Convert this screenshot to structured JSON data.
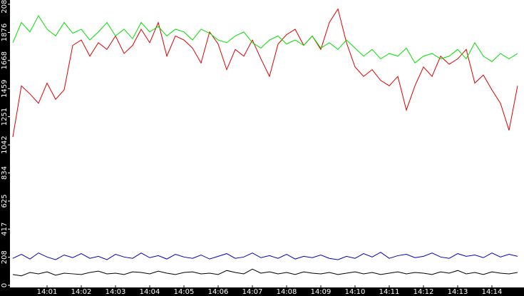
{
  "chart_data": {
    "type": "line",
    "categories": [
      null,
      null,
      null,
      null,
      "14:01",
      null,
      null,
      null,
      "14:02",
      null,
      null,
      null,
      "14:03",
      null,
      null,
      null,
      "14:04",
      null,
      null,
      null,
      "14:05",
      null,
      null,
      null,
      "14:06",
      null,
      null,
      null,
      "14:07",
      null,
      null,
      null,
      "14:08",
      null,
      null,
      null,
      "14:09",
      null,
      null,
      null,
      "14:10",
      null,
      null,
      null,
      "14:11",
      null,
      null,
      null,
      "14:12",
      null,
      null,
      null,
      "14:13",
      null,
      null,
      null,
      "14:14",
      null,
      null,
      null
    ],
    "series": [
      {
        "color": "#e00000",
        "values": [
          1100,
          1480,
          1420,
          1350,
          1500,
          1380,
          1450,
          1780,
          1820,
          1700,
          1800,
          1750,
          1850,
          1720,
          1780,
          1900,
          1800,
          1950,
          1700,
          1850,
          1820,
          1760,
          1650,
          1880,
          1790,
          1600,
          1750,
          1700,
          1820,
          1680,
          1550,
          1790,
          1860,
          1900,
          1780,
          1850,
          1750,
          1950,
          2050,
          1800,
          1620,
          1550,
          1600,
          1520,
          1480,
          1550,
          1300,
          1480,
          1620,
          1550,
          1700,
          1640,
          1680,
          1750,
          1500,
          1560,
          1450,
          1350,
          1150,
          1480
        ]
      },
      {
        "color": "#00e000",
        "values": [
          1800,
          1950,
          1880,
          2000,
          1900,
          1850,
          1950,
          1870,
          1900,
          1820,
          1880,
          1950,
          1850,
          1900,
          1830,
          1950,
          1880,
          1920,
          1850,
          1900,
          1880,
          1820,
          1900,
          1870,
          1820,
          1800,
          1850,
          1880,
          1800,
          1760,
          1820,
          1850,
          1790,
          1820,
          1780,
          1850,
          1760,
          1800,
          1750,
          1820,
          1760,
          1700,
          1750,
          1680,
          1720,
          1700,
          1760,
          1650,
          1700,
          1720,
          1680,
          1700,
          1750,
          1680,
          1800,
          1700,
          1660,
          1720,
          1680,
          1720
        ]
      },
      {
        "color": "#0000c0",
        "values": [
          200,
          230,
          195,
          240,
          210,
          190,
          225,
          205,
          235,
          200,
          215,
          190,
          230,
          210,
          200,
          240,
          205,
          220,
          195,
          230,
          210,
          200,
          225,
          195,
          215,
          235,
          200,
          210,
          240,
          205,
          220,
          200,
          230,
          195,
          215,
          205,
          225,
          200,
          190,
          215,
          200,
          235,
          210,
          245,
          200,
          220,
          230,
          205,
          215,
          240,
          210,
          200,
          235,
          215,
          225,
          205,
          240,
          210,
          230,
          215
        ]
      },
      {
        "color": "#000000",
        "values": [
          80,
          70,
          95,
          85,
          100,
          75,
          90,
          85,
          80,
          95,
          105,
          85,
          90,
          80,
          100,
          95,
          85,
          105,
          90,
          80,
          95,
          100,
          85,
          90,
          80,
          110,
          95,
          85,
          120,
          90,
          100,
          85,
          95,
          80,
          100,
          90,
          85,
          95,
          80,
          90,
          100,
          85,
          95,
          80,
          90,
          100,
          85,
          95,
          90,
          80,
          100,
          90,
          110,
          85,
          95,
          80,
          100,
          90,
          85,
          95
        ]
      }
    ],
    "ylim": [
      0,
      2085
    ],
    "yticks": [
      0,
      208,
      417,
      625,
      834,
      1042,
      1251,
      1459,
      1668,
      1876,
      2085
    ]
  }
}
